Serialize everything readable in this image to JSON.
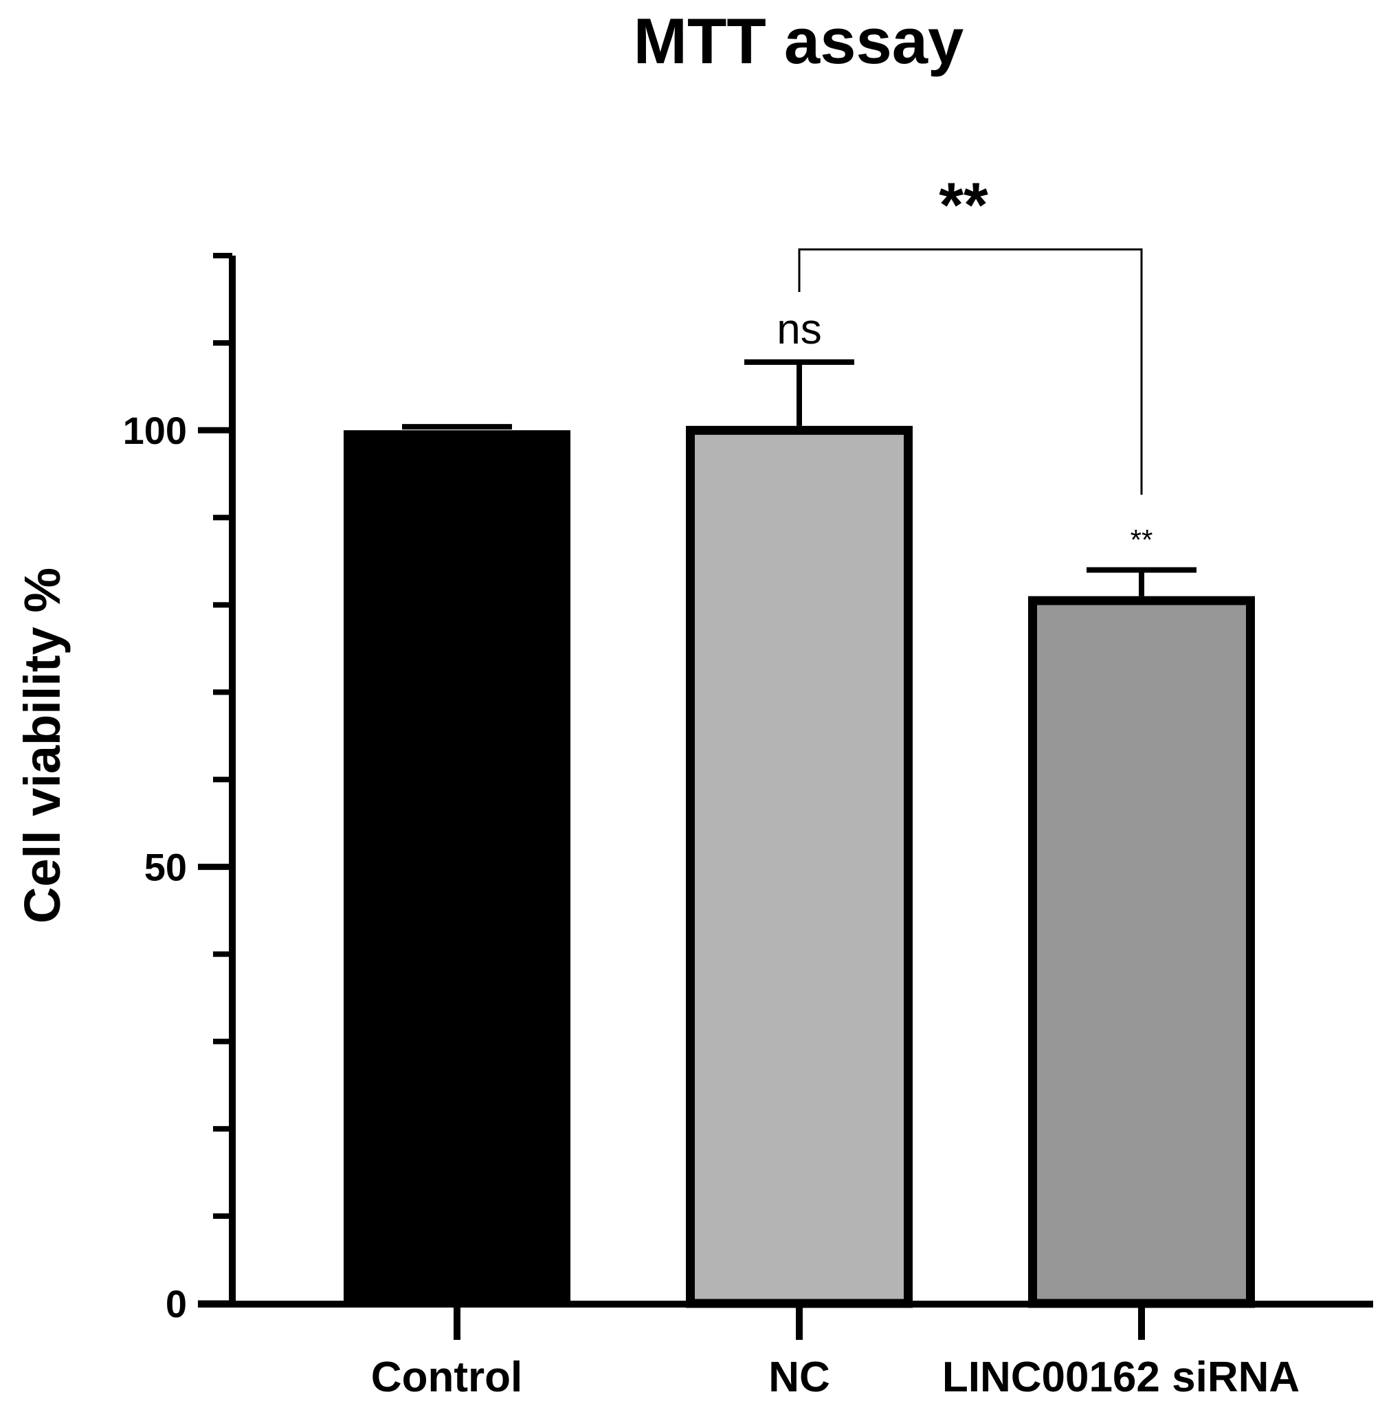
{
  "chart_data": {
    "type": "bar",
    "title": "MTT assay",
    "xlabel": "",
    "ylabel": "Cell viability %",
    "ylim": [
      0,
      120
    ],
    "yticks_major": [
      0,
      50,
      100
    ],
    "yticks_minor": [
      10,
      20,
      30,
      40,
      60,
      70,
      80,
      90,
      110,
      120
    ],
    "categories": [
      "Control",
      "NC",
      "LINC00162 siRNA"
    ],
    "values": [
      100,
      100.5,
      81
    ],
    "errors": [
      0.4,
      7.3,
      3
    ],
    "colors": [
      "#000000",
      "#b4b4b4",
      "#969696"
    ],
    "bar_annotations": [
      "",
      "ns",
      "**"
    ],
    "comparison": {
      "from": 1,
      "to": 2,
      "label": "**"
    },
    "grid": false,
    "legend": "none"
  }
}
